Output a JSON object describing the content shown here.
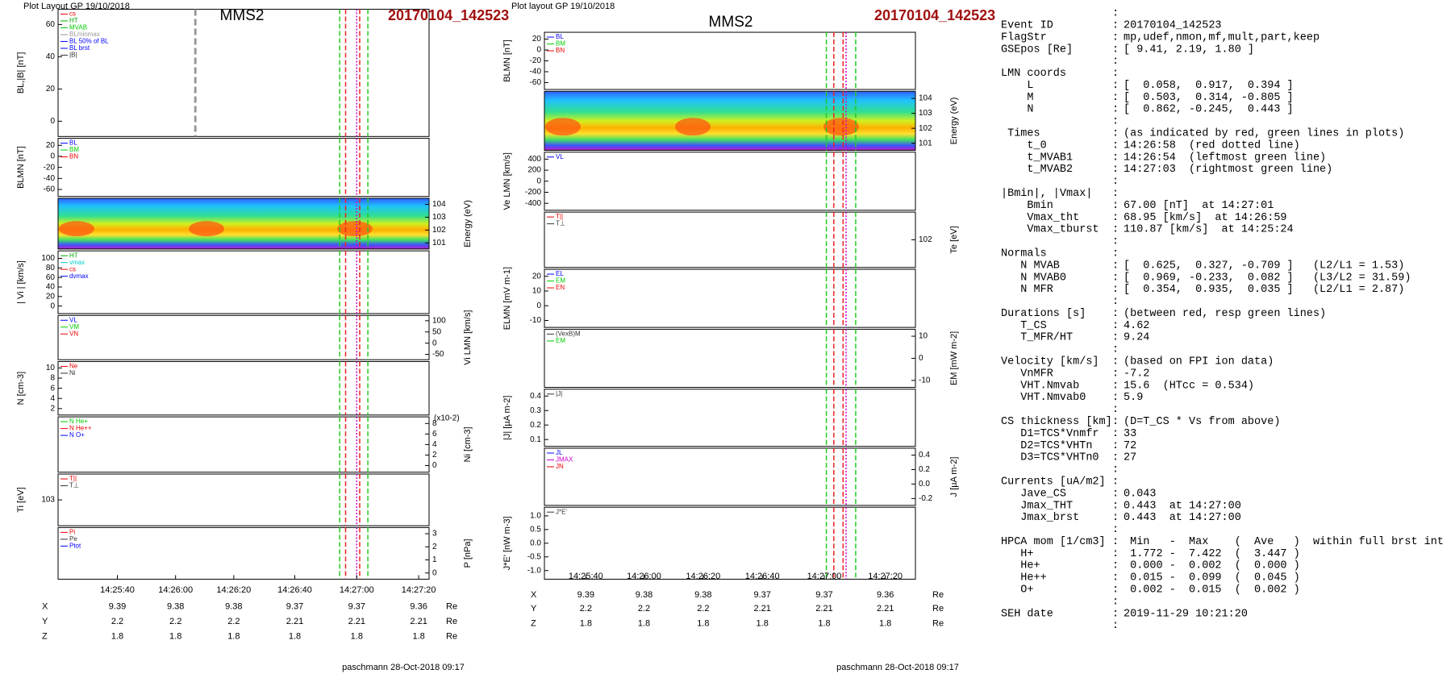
{
  "left": {
    "header": "Plot Layout GP 19/10/2018",
    "title": "MMS2",
    "event": "20170104_142523",
    "panels": [
      {
        "ylabel": "BL,|B| [nT]",
        "side": "left",
        "yticks": [
          "60",
          "40",
          "20",
          "0"
        ],
        "legend": [
          "cs",
          "HT",
          "MVAB",
          "BLminmax",
          "BL 50% of BL",
          "BL brst",
          "|B|"
        ],
        "colors": [
          "#e00",
          "#0a0",
          "#0c0",
          "#999",
          "#00f",
          "#00f",
          "#333"
        ]
      },
      {
        "ylabel": "BLMN [nT]",
        "side": "left",
        "yticks": [
          "20",
          "0",
          "-20",
          "-40",
          "-60"
        ],
        "legend": [
          "BL",
          "BM",
          "BN"
        ],
        "colors": [
          "#00f",
          "#0c0",
          "#e00"
        ]
      },
      {
        "ylabel": "Energy (eV)",
        "side": "right",
        "spectrogram": true,
        "yticks": [
          "104",
          "103",
          "102",
          "101"
        ],
        "legend": [],
        "colors": []
      },
      {
        "ylabel": "| Vi | [km/s]",
        "side": "left",
        "yticks": [
          "100",
          "80",
          "60",
          "40",
          "20",
          "0"
        ],
        "legend": [
          "HT",
          "vmax",
          "cs",
          "dvmax"
        ],
        "colors": [
          "#0a0",
          "#0cc",
          "#e00",
          "#00f"
        ]
      },
      {
        "ylabel": "Vi LMN [km/s]",
        "side": "right",
        "yticks": [
          "100",
          "50",
          "0",
          "-50"
        ],
        "legend": [
          "VL",
          "VM",
          "VN"
        ],
        "colors": [
          "#00f",
          "#0c0",
          "#e00"
        ]
      },
      {
        "ylabel": "N [cm-3]",
        "side": "left",
        "yticks": [
          "10",
          "8",
          "6",
          "4",
          "2"
        ],
        "legend": [
          "Ne",
          "Ni"
        ],
        "colors": [
          "#e00",
          "#333"
        ]
      },
      {
        "ylabel": "Ni [cm-3]",
        "side": "right",
        "yticks": [
          "8",
          "6",
          "4",
          "2",
          "0"
        ],
        "scale": "(x10-2)",
        "legend": [
          "N He+",
          "N He++",
          "N O+"
        ],
        "colors": [
          "#0c0",
          "#e00",
          "#00f"
        ]
      },
      {
        "ylabel": "Ti [eV]",
        "side": "left",
        "yticks": [
          "103"
        ],
        "legend": [
          "T||",
          "T⊥"
        ],
        "colors": [
          "#e00",
          "#333"
        ]
      },
      {
        "ylabel": "P [nPa]",
        "side": "right",
        "yticks": [
          "3",
          "2",
          "1",
          "0"
        ],
        "legend": [
          "Pi",
          "Pe",
          "Ptot"
        ],
        "colors": [
          "#e00",
          "#333",
          "#00f"
        ]
      }
    ],
    "xticks": [
      "14:25:40",
      "14:26:00",
      "14:26:20",
      "14:26:40",
      "14:27:00",
      "14:27:20"
    ],
    "positions": [
      {
        "label": "X",
        "values": [
          "9.39",
          "9.38",
          "9.38",
          "9.37",
          "9.37",
          "9.36"
        ],
        "unit": "Re"
      },
      {
        "label": "Y",
        "values": [
          "2.2",
          "2.2",
          "2.2",
          "2.21",
          "2.21",
          "2.21"
        ],
        "unit": "Re"
      },
      {
        "label": "Z",
        "values": [
          "1.8",
          "1.8",
          "1.8",
          "1.8",
          "1.8",
          "1.8"
        ],
        "unit": "Re"
      }
    ],
    "footer": "paschmann 28-Oct-2018 09:17"
  },
  "middle": {
    "header": "Plot layout GP 19/10/2018",
    "title": "MMS2",
    "event": "20170104_142523",
    "panels": [
      {
        "ylabel": "BLMN [nT]",
        "side": "left",
        "yticks": [
          "20",
          "0",
          "-20",
          "-40",
          "-60"
        ],
        "legend": [
          "BL",
          "BM",
          "BN"
        ],
        "colors": [
          "#00f",
          "#0c0",
          "#e00"
        ]
      },
      {
        "ylabel": "Energy (eV)",
        "side": "right",
        "spectrogram": true,
        "yticks": [
          "104",
          "103",
          "102",
          "101"
        ],
        "legend": [],
        "colors": []
      },
      {
        "ylabel": "Ve LMN [km/s]",
        "side": "left",
        "yticks": [
          "400",
          "200",
          "0",
          "-200",
          "-400"
        ],
        "legend": [
          "VL"
        ],
        "colors": [
          "#00f"
        ]
      },
      {
        "ylabel": "Te [eV]",
        "side": "right",
        "yticks": [
          "102"
        ],
        "legend": [
          "T||",
          "T⊥"
        ],
        "colors": [
          "#e00",
          "#333"
        ]
      },
      {
        "ylabel": "ELMN [mV m-1]",
        "side": "left",
        "yticks": [
          "20",
          "10",
          "0",
          "-10"
        ],
        "legend": [
          "EL",
          "EM",
          "EN"
        ],
        "colors": [
          "#00f",
          "#0c0",
          "#e00"
        ]
      },
      {
        "ylabel": "EM [mW m-2]",
        "side": "right",
        "yticks": [
          "10",
          "0",
          "-10"
        ],
        "legend": [
          "(VexB)M",
          "EM"
        ],
        "colors": [
          "#333",
          "#0c0"
        ]
      },
      {
        "ylabel": "|J| [µA m-2]",
        "side": "left",
        "yticks": [
          "0.4",
          "0.3",
          "0.2",
          "0.1"
        ],
        "legend": [
          "|J|"
        ],
        "colors": [
          "#333"
        ]
      },
      {
        "ylabel": "J [µA m-2]",
        "side": "right",
        "yticks": [
          "0.4",
          "0.2",
          "0.0",
          "-0.2"
        ],
        "legend": [
          "JL",
          "JMAX",
          "JN"
        ],
        "colors": [
          "#00f",
          "#c0c",
          "#e00"
        ]
      },
      {
        "ylabel": "J*E' [nW m-3]",
        "side": "left",
        "yticks": [
          "1.0",
          "0.5",
          "0.0",
          "-0.5",
          "-1.0"
        ],
        "legend": [
          "J*E'"
        ],
        "colors": [
          "#333"
        ]
      }
    ],
    "xticks": [
      "14:25:40",
      "14:26:00",
      "14:26:20",
      "14:26:40",
      "14:27:00",
      "14:27:20"
    ],
    "positions": [
      {
        "label": "X",
        "values": [
          "9.39",
          "9.38",
          "9.38",
          "9.37",
          "9.37",
          "9.36"
        ],
        "unit": "Re"
      },
      {
        "label": "Y",
        "values": [
          "2.2",
          "2.2",
          "2.2",
          "2.21",
          "2.21",
          "2.21"
        ],
        "unit": "Re"
      },
      {
        "label": "Z",
        "values": [
          "1.8",
          "1.8",
          "1.8",
          "1.8",
          "1.8",
          "1.8"
        ],
        "unit": "Re"
      }
    ],
    "footer": "paschmann 28-Oct-2018 09:17"
  },
  "info": {
    "rows": [
      [],
      [
        "Event ID",
        "20170104_142523"
      ],
      [
        "FlagStr",
        "mp,udef,nmon,mf,mult,part,keep"
      ],
      [
        "GSEpos [Re]",
        "[ 9.41, 2.19, 1.80 ]"
      ],
      [],
      [
        "LMN coords"
      ],
      [
        "    L",
        "[  0.058,  0.917,  0.394 ]"
      ],
      [
        "    M",
        "[  0.503,  0.314, -0.805 ]"
      ],
      [
        "    N",
        "[  0.862, -0.245,  0.443 ]"
      ],
      [],
      [
        " Times",
        "(as indicated by red, green lines in plots)"
      ],
      [
        "    t_0",
        "14:26:58  (red dotted line)"
      ],
      [
        "    t_MVAB1",
        "14:26:54  (leftmost green line)"
      ],
      [
        "    t_MVAB2",
        "14:27:03  (rightmost green line)"
      ],
      [],
      [
        "|Bmin|, |Vmax|"
      ],
      [
        "    Bmin",
        "67.00 [nT]  at 14:27:01"
      ],
      [
        "    Vmax_tht",
        "68.95 [km/s]  at 14:26:59"
      ],
      [
        "    Vmax_tburst",
        "110.87 [km/s]  at 14:25:24"
      ],
      [],
      [
        "Normals"
      ],
      [
        "   N MVAB",
        "[  0.625,  0.327, -0.709 ]   (L2/L1 = 1.53)"
      ],
      [
        "   N MVAB0",
        "[  0.969, -0.233,  0.082 ]   (L3/L2 = 31.59)"
      ],
      [
        "   N MFR",
        "[  0.354,  0.935,  0.035 ]   (L2/L1 = 2.87)"
      ],
      [],
      [
        "Durations [s]",
        "(between red, resp green lines)"
      ],
      [
        "   T_CS",
        "4.62"
      ],
      [
        "   T_MFR/HT",
        "9.24"
      ],
      [],
      [
        "Velocity [km/s]",
        "(based on FPI ion data)"
      ],
      [
        "   VnMFR",
        "-7.2"
      ],
      [
        "   VHT.Nmvab",
        "15.6  (HTcc = 0.534)"
      ],
      [
        "   VHT.Nmvab0",
        "5.9"
      ],
      [],
      [
        "CS thickness [km]",
        "(D=T_CS * Vs from above)"
      ],
      [
        "   D1=TCS*Vnmfr",
        "33"
      ],
      [
        "   D2=TCS*VHTn",
        "72"
      ],
      [
        "   D3=TCS*VHTn0",
        "27"
      ],
      [],
      [
        "Currents [uA/m2]"
      ],
      [
        "   Jave_CS",
        "0.043"
      ],
      [
        "   Jmax_THT",
        "0.443  at 14:27:00"
      ],
      [
        "   Jmax_brst",
        "0.443  at 14:27:00"
      ],
      [],
      [
        "HPCA mom [1/cm3]",
        " Min   -  Max    (  Ave   )  within full brst int"
      ],
      [
        "   H+",
        " 1.772 -  7.422  (  3.447 )"
      ],
      [
        "   He+",
        " 0.000 -  0.002  (  0.000 )"
      ],
      [
        "   He++",
        " 0.015 -  0.099  (  0.045 )"
      ],
      [
        "   O+",
        " 0.002 -  0.015  (  0.002 )"
      ],
      [],
      [
        "SEH date",
        "2019-11-29 10:21:20"
      ],
      []
    ]
  }
}
